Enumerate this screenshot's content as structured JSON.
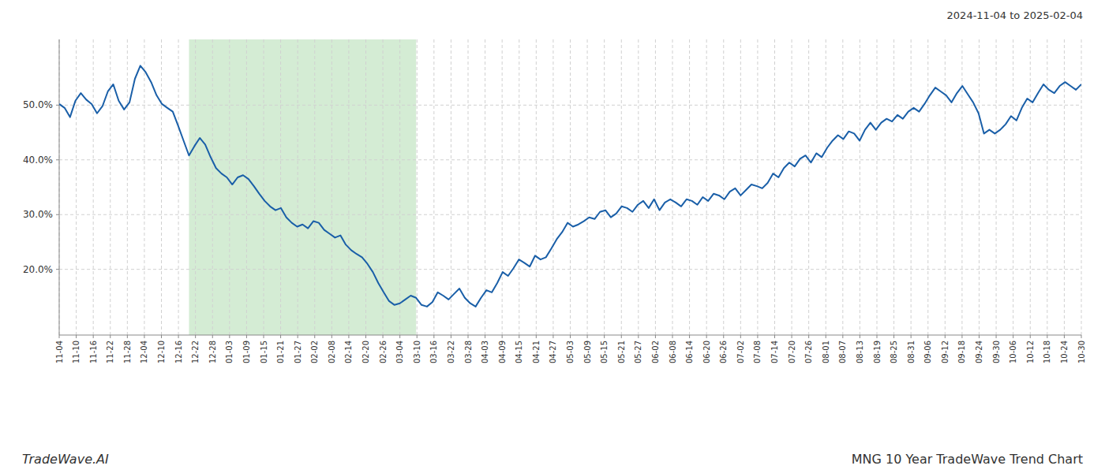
{
  "chart_data": {
    "type": "line",
    "title": "MNG 10 Year TradeWave Trend Chart",
    "subtitle": "2024-11-04 to 2025-02-04",
    "annotations": [
      "TradeWave.AI"
    ],
    "color": "#1a5fa8",
    "grid": true,
    "span": {
      "from": 24,
      "to": 66,
      "color": "#d4ecd4"
    },
    "xlim": [
      0,
      189
    ],
    "xticks": [
      {
        "value": 0,
        "label": "11-04"
      },
      {
        "value": 3.15,
        "label": "11-10"
      },
      {
        "value": 6.3,
        "label": "11-16"
      },
      {
        "value": 9.45,
        "label": "11-22"
      },
      {
        "value": 12.6,
        "label": "11-28"
      },
      {
        "value": 15.75,
        "label": "12-04"
      },
      {
        "value": 18.9,
        "label": "12-10"
      },
      {
        "value": 22.05,
        "label": "12-16"
      },
      {
        "value": 25.2,
        "label": "12-22"
      },
      {
        "value": 28.35,
        "label": "12-28"
      },
      {
        "value": 31.5,
        "label": "01-03"
      },
      {
        "value": 34.65,
        "label": "01-09"
      },
      {
        "value": 37.8,
        "label": "01-15"
      },
      {
        "value": 40.95,
        "label": "01-21"
      },
      {
        "value": 44.1,
        "label": "01-27"
      },
      {
        "value": 47.25,
        "label": "02-02"
      },
      {
        "value": 50.4,
        "label": "02-08"
      },
      {
        "value": 53.55,
        "label": "02-14"
      },
      {
        "value": 56.7,
        "label": "02-20"
      },
      {
        "value": 59.85,
        "label": "02-26"
      },
      {
        "value": 63,
        "label": "03-04"
      },
      {
        "value": 66.15,
        "label": "03-10"
      },
      {
        "value": 69.3,
        "label": "03-16"
      },
      {
        "value": 72.45,
        "label": "03-22"
      },
      {
        "value": 75.6,
        "label": "03-28"
      },
      {
        "value": 78.75,
        "label": "04-03"
      },
      {
        "value": 81.9,
        "label": "04-09"
      },
      {
        "value": 85.05,
        "label": "04-15"
      },
      {
        "value": 88.2,
        "label": "04-21"
      },
      {
        "value": 91.35,
        "label": "04-27"
      },
      {
        "value": 94.5,
        "label": "05-03"
      },
      {
        "value": 97.65,
        "label": "05-09"
      },
      {
        "value": 100.8,
        "label": "05-15"
      },
      {
        "value": 103.95,
        "label": "05-21"
      },
      {
        "value": 107.1,
        "label": "05-27"
      },
      {
        "value": 110.25,
        "label": "06-02"
      },
      {
        "value": 113.4,
        "label": "06-08"
      },
      {
        "value": 116.55,
        "label": "06-14"
      },
      {
        "value": 119.7,
        "label": "06-20"
      },
      {
        "value": 122.85,
        "label": "06-26"
      },
      {
        "value": 126,
        "label": "07-02"
      },
      {
        "value": 129.15,
        "label": "07-08"
      },
      {
        "value": 132.3,
        "label": "07-14"
      },
      {
        "value": 135.45,
        "label": "07-20"
      },
      {
        "value": 138.6,
        "label": "07-26"
      },
      {
        "value": 141.75,
        "label": "08-01"
      },
      {
        "value": 144.9,
        "label": "08-07"
      },
      {
        "value": 148.05,
        "label": "08-13"
      },
      {
        "value": 151.2,
        "label": "08-19"
      },
      {
        "value": 154.35,
        "label": "08-25"
      },
      {
        "value": 157.5,
        "label": "08-31"
      },
      {
        "value": 160.65,
        "label": "09-06"
      },
      {
        "value": 163.8,
        "label": "09-12"
      },
      {
        "value": 166.95,
        "label": "09-18"
      },
      {
        "value": 170.1,
        "label": "09-24"
      },
      {
        "value": 173.25,
        "label": "09-30"
      },
      {
        "value": 176.4,
        "label": "10-06"
      },
      {
        "value": 179.55,
        "label": "10-12"
      },
      {
        "value": 182.7,
        "label": "10-18"
      },
      {
        "value": 185.85,
        "label": "10-24"
      },
      {
        "value": 189,
        "label": "10-30"
      }
    ],
    "ylim": [
      8,
      62
    ],
    "yticks": [
      {
        "value": 20,
        "label": "20.0%"
      },
      {
        "value": 30,
        "label": "30.0%"
      },
      {
        "value": 40,
        "label": "40.0%"
      },
      {
        "value": 50,
        "label": "50.0%"
      }
    ],
    "values": [
      50.2,
      49.5,
      47.8,
      50.8,
      52.2,
      51.0,
      50.2,
      48.5,
      49.8,
      52.5,
      53.8,
      50.8,
      49.2,
      50.5,
      54.8,
      57.2,
      56.0,
      54.2,
      51.8,
      50.2,
      49.5,
      48.8,
      46.2,
      43.5,
      40.8,
      42.5,
      44.0,
      42.8,
      40.5,
      38.5,
      37.5,
      36.8,
      35.5,
      36.8,
      37.2,
      36.5,
      35.2,
      33.8,
      32.5,
      31.5,
      30.8,
      31.2,
      29.5,
      28.5,
      27.8,
      28.2,
      27.5,
      28.8,
      28.5,
      27.2,
      26.5,
      25.8,
      26.2,
      24.5,
      23.5,
      22.8,
      22.2,
      21.0,
      19.5,
      17.5,
      15.8,
      14.2,
      13.5,
      13.8,
      14.5,
      15.2,
      14.8,
      13.5,
      13.2,
      14.0,
      15.8,
      15.2,
      14.5,
      15.5,
      16.5,
      14.8,
      13.8,
      13.2,
      14.8,
      16.2,
      15.8,
      17.5,
      19.5,
      18.8,
      20.2,
      21.8,
      21.2,
      20.5,
      22.5,
      21.8,
      22.2,
      23.8,
      25.5,
      26.8,
      28.5,
      27.8,
      28.2,
      28.8,
      29.5,
      29.2,
      30.5,
      30.8,
      29.5,
      30.2,
      31.5,
      31.2,
      30.5,
      31.8,
      32.5,
      31.2,
      32.8,
      30.8,
      32.2,
      32.8,
      32.2,
      31.5,
      32.8,
      32.5,
      31.8,
      33.2,
      32.5,
      33.8,
      33.5,
      32.8,
      34.2,
      34.8,
      33.5,
      34.5,
      35.5,
      35.2,
      34.8,
      35.8,
      37.5,
      36.8,
      38.5,
      39.5,
      38.8,
      40.2,
      40.8,
      39.5,
      41.2,
      40.5,
      42.2,
      43.5,
      44.5,
      43.8,
      45.2,
      44.8,
      43.5,
      45.5,
      46.8,
      45.5,
      46.8,
      47.5,
      47.0,
      48.2,
      47.5,
      48.8,
      49.5,
      48.8,
      50.2,
      51.8,
      53.2,
      52.5,
      51.8,
      50.5,
      52.2,
      53.5,
      52.0,
      50.5,
      48.5,
      44.8,
      45.5,
      44.8,
      45.5,
      46.5,
      48.0,
      47.2,
      49.5,
      51.2,
      50.5,
      52.2,
      53.8,
      52.8,
      52.2,
      53.5,
      54.2,
      53.5,
      52.8,
      53.8
    ]
  }
}
